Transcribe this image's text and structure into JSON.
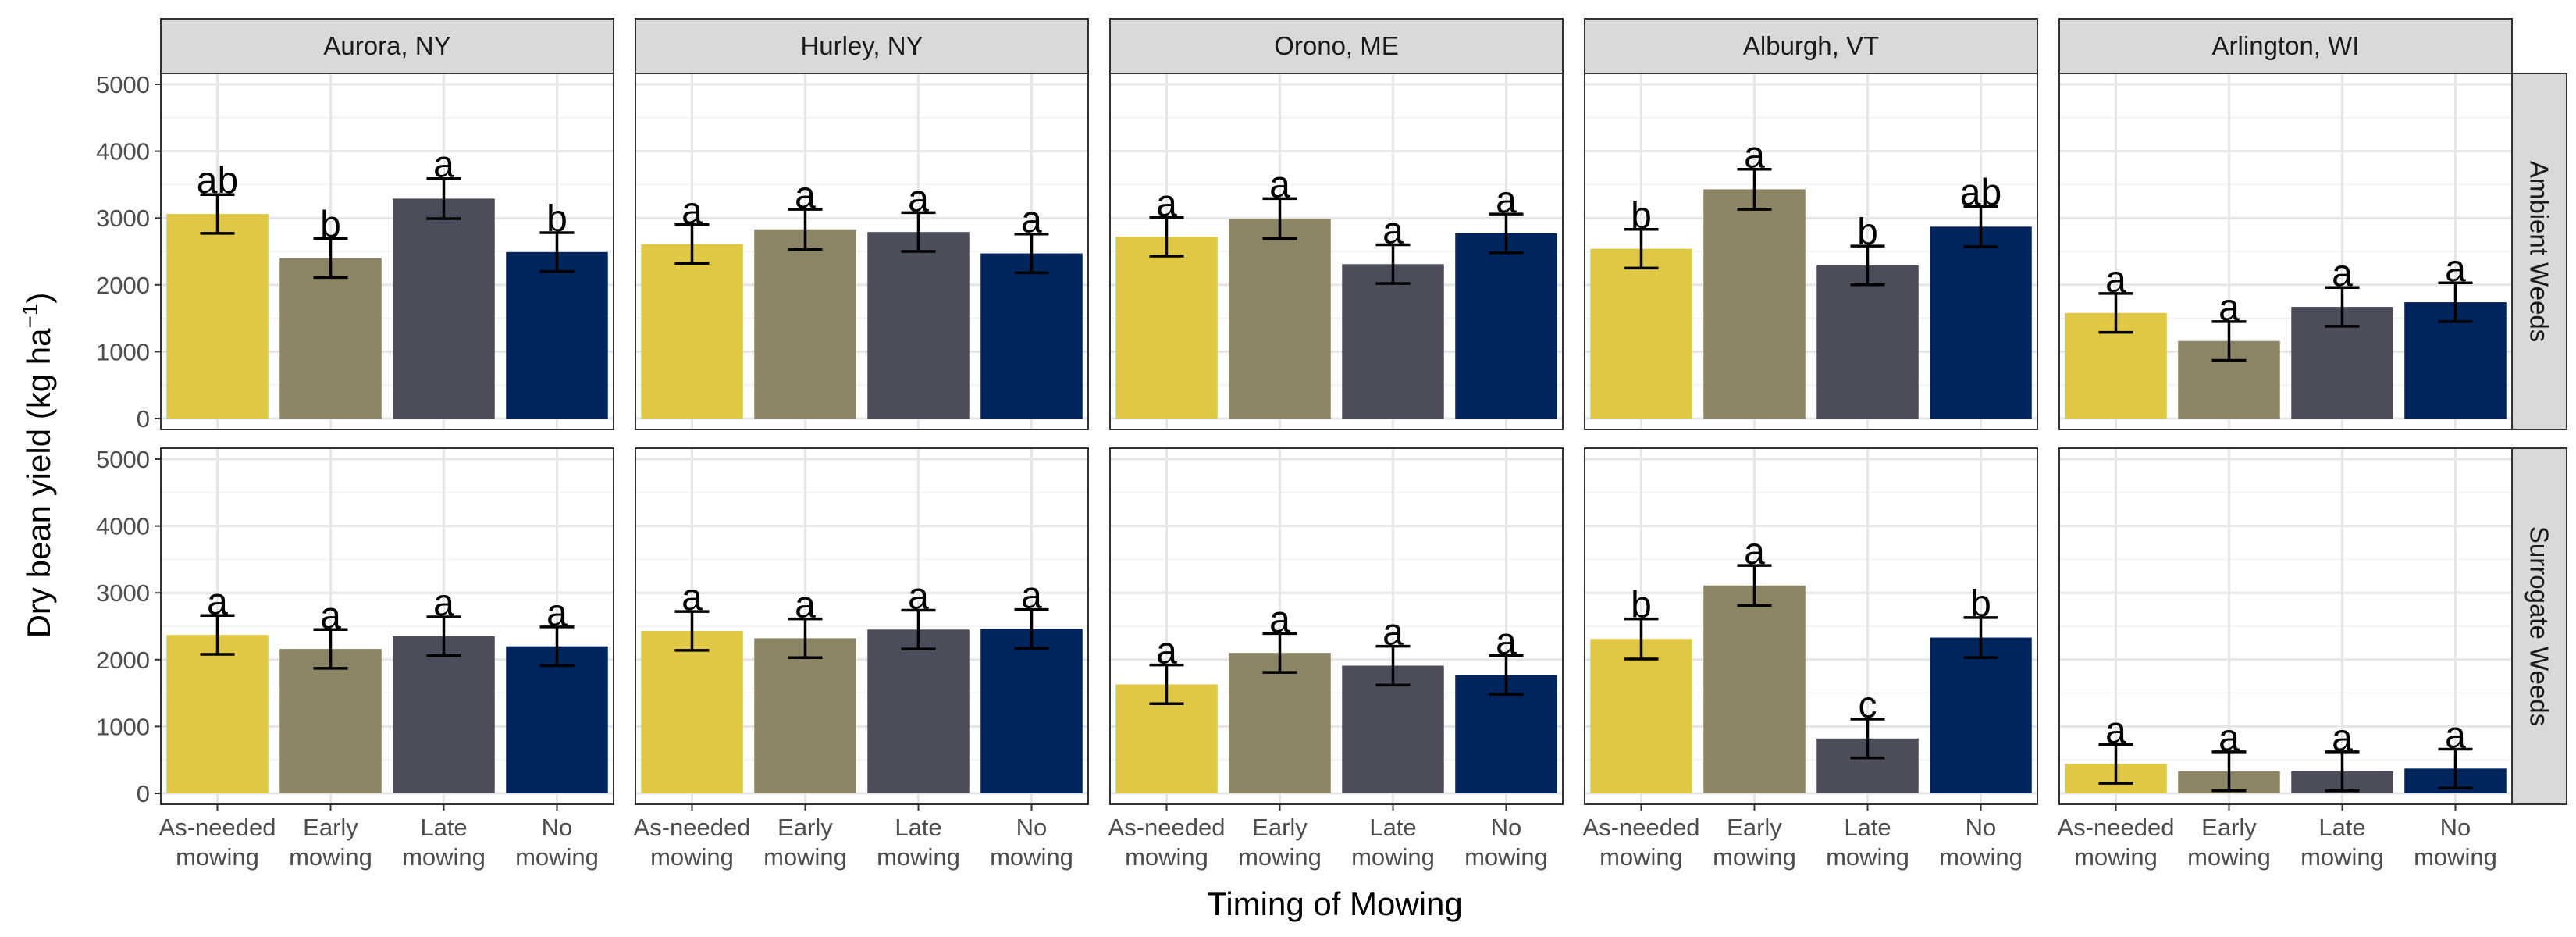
{
  "chart_data": {
    "type": "bar",
    "xlabel": "Timing of Mowing",
    "ylabel": "Dry bean yield (kg ha",
    "ylabel_sup": "−1",
    "ylabel_close": ")",
    "ylim": [
      0,
      5200
    ],
    "yticks": [
      "0",
      "1000",
      "2000",
      "3000",
      "4000",
      "5000"
    ],
    "grid": true,
    "categories": [
      [
        "As-needed",
        "mowing"
      ],
      [
        "Early",
        "mowing"
      ],
      [
        "Late",
        "mowing"
      ],
      [
        "No",
        "mowing"
      ]
    ],
    "bar_colors": [
      "#e0c845",
      "#8b8565",
      "#4b4e5a",
      "#00245c"
    ],
    "locations": [
      "Aurora, NY",
      "Hurley, NY",
      "Orono, ME",
      "Alburgh, VT",
      "Arlington, WI"
    ],
    "treatments": [
      "Ambient Weeds",
      "Surrogate Weeds"
    ],
    "panels": [
      {
        "location": "Aurora, NY",
        "treatment": "Ambient Weeds",
        "values": [
          3060,
          2400,
          3290,
          2490
        ],
        "errors": [
          290,
          290,
          300,
          290
        ],
        "letters": [
          "ab",
          "b",
          "a",
          "b"
        ]
      },
      {
        "location": "Hurley, NY",
        "treatment": "Ambient Weeds",
        "values": [
          2610,
          2830,
          2790,
          2470
        ],
        "errors": [
          290,
          300,
          290,
          290
        ],
        "letters": [
          "a",
          "a",
          "a",
          "a"
        ]
      },
      {
        "location": "Orono, ME",
        "treatment": "Ambient Weeds",
        "values": [
          2720,
          2990,
          2310,
          2770
        ],
        "errors": [
          290,
          300,
          290,
          290
        ],
        "letters": [
          "a",
          "a",
          "a",
          "a"
        ]
      },
      {
        "location": "Alburgh, VT",
        "treatment": "Ambient Weeds",
        "values": [
          2540,
          3430,
          2290,
          2870
        ],
        "errors": [
          290,
          300,
          290,
          300
        ],
        "letters": [
          "b",
          "a",
          "b",
          "ab"
        ]
      },
      {
        "location": "Arlington, WI",
        "treatment": "Ambient Weeds",
        "values": [
          1580,
          1160,
          1670,
          1740
        ],
        "errors": [
          290,
          290,
          290,
          290
        ],
        "letters": [
          "a",
          "a",
          "a",
          "a"
        ]
      },
      {
        "location": "Aurora, NY",
        "treatment": "Surrogate Weeds",
        "values": [
          2370,
          2160,
          2350,
          2200
        ],
        "errors": [
          290,
          290,
          290,
          290
        ],
        "letters": [
          "a",
          "a",
          "a",
          "a"
        ]
      },
      {
        "location": "Hurley, NY",
        "treatment": "Surrogate Weeds",
        "values": [
          2430,
          2320,
          2450,
          2460
        ],
        "errors": [
          290,
          290,
          290,
          290
        ],
        "letters": [
          "a",
          "a",
          "a",
          "a"
        ]
      },
      {
        "location": "Orono, ME",
        "treatment": "Surrogate Weeds",
        "values": [
          1630,
          2100,
          1910,
          1770
        ],
        "errors": [
          290,
          290,
          290,
          290
        ],
        "letters": [
          "a",
          "a",
          "a",
          "a"
        ]
      },
      {
        "location": "Alburgh, VT",
        "treatment": "Surrogate Weeds",
        "values": [
          2310,
          3110,
          820,
          2330
        ],
        "errors": [
          300,
          300,
          290,
          300
        ],
        "letters": [
          "b",
          "a",
          "c",
          "b"
        ]
      },
      {
        "location": "Arlington, WI",
        "treatment": "Surrogate Weeds",
        "values": [
          440,
          330,
          330,
          370
        ],
        "errors": [
          290,
          290,
          290,
          290
        ],
        "letters": [
          "a",
          "a",
          "a",
          "a"
        ]
      }
    ]
  }
}
